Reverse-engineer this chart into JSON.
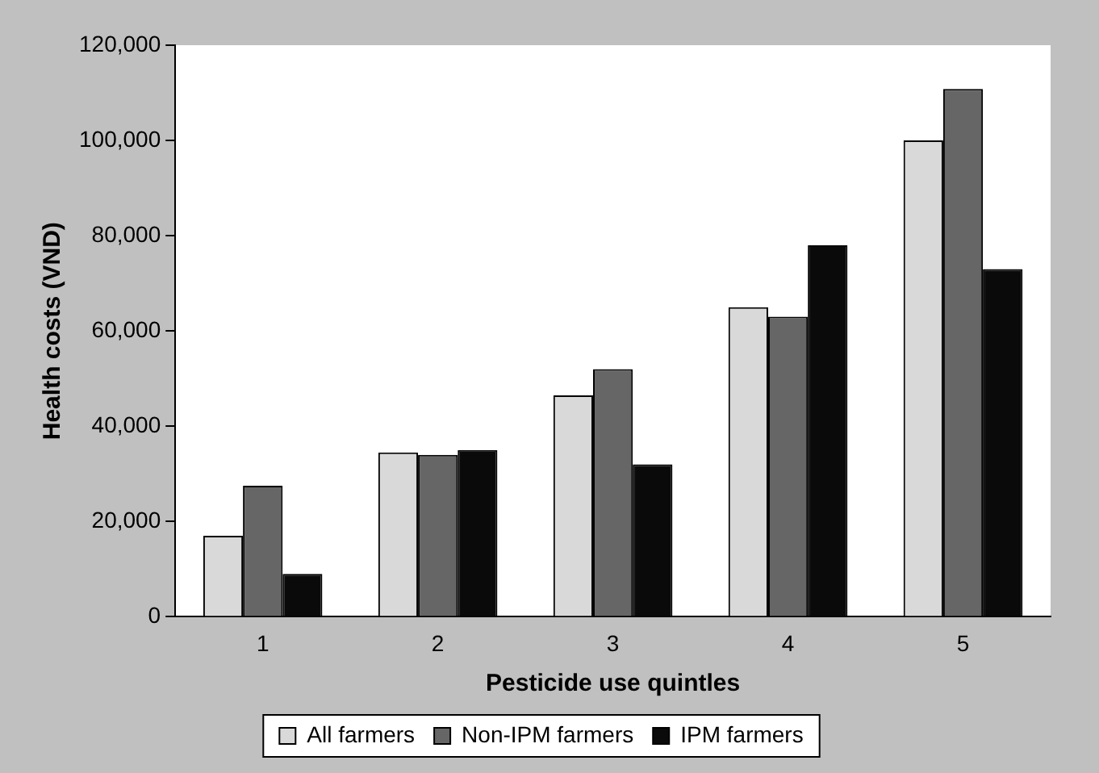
{
  "chart_data": {
    "type": "bar",
    "xlabel": "Pesticide use quintles",
    "ylabel": "Health costs (VND)",
    "categories": [
      "1",
      "2",
      "3",
      "4",
      "5"
    ],
    "series": [
      {
        "name": "All farmers",
        "color": "#d9d9d9",
        "values": [
          17000,
          34500,
          46500,
          65000,
          100000
        ]
      },
      {
        "name": "Non-IPM farmers",
        "color": "#666666",
        "values": [
          27500,
          34000,
          52000,
          63000,
          110800
        ]
      },
      {
        "name": "IPM farmers",
        "color": "#0a0a0a",
        "values": [
          9000,
          35000,
          32000,
          78000,
          73000
        ]
      }
    ],
    "ylim": [
      0,
      120000
    ],
    "yticks": [
      0,
      {
        "value": 20000,
        "label": "20,000"
      },
      {
        "value": 40000,
        "label": "40,000"
      },
      {
        "value": 60000,
        "label": "60,000"
      },
      {
        "value": 80000,
        "label": "80,000"
      },
      {
        "value": 100000,
        "label": "100,000"
      },
      {
        "value": 120000,
        "label": "120,000"
      }
    ],
    "grid": false,
    "legend": "bottom"
  }
}
